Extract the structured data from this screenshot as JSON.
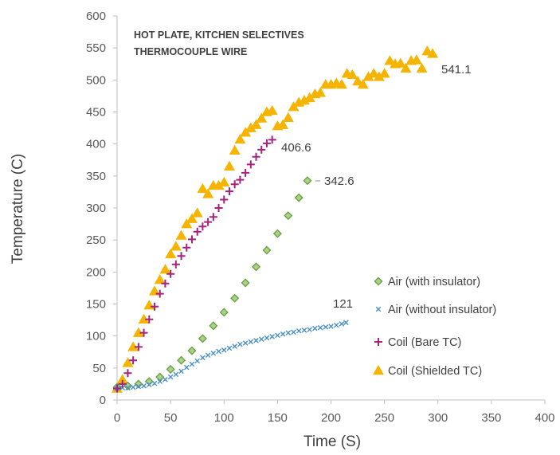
{
  "chart_data": {
    "type": "scatter",
    "title_lines": [
      "HOT PLATE, KITCHEN SELECTIVES",
      "THERMOCOUPLE WIRE"
    ],
    "xlabel": "Time (S)",
    "ylabel": "Temperature (C)",
    "xlim": [
      0,
      400
    ],
    "ylim": [
      0,
      600
    ],
    "x_ticks": [
      "0",
      "50",
      "100",
      "150",
      "200",
      "250",
      "300",
      "350",
      "400"
    ],
    "y_ticks": [
      "0",
      "50",
      "100",
      "150",
      "200",
      "250",
      "300",
      "350",
      "400",
      "450",
      "500",
      "550",
      "600"
    ],
    "grid": false,
    "legend_position": "bottom-right inside plot",
    "annotations": [
      "541.1",
      "406.6",
      "342.6",
      "121"
    ],
    "series": [
      {
        "name": "Air (with insulator)",
        "marker": "diamond",
        "color": "#6a9e3a",
        "fill": "#a9d18e",
        "points": [
          [
            0,
            20
          ],
          [
            10,
            22
          ],
          [
            20,
            25
          ],
          [
            30,
            29
          ],
          [
            40,
            36
          ],
          [
            50,
            48
          ],
          [
            60,
            62
          ],
          [
            70,
            77
          ],
          [
            80,
            96
          ],
          [
            90,
            116
          ],
          [
            100,
            137
          ],
          [
            110,
            159
          ],
          [
            120,
            183
          ],
          [
            130,
            208
          ],
          [
            140,
            234
          ],
          [
            150,
            260
          ],
          [
            160,
            288
          ],
          [
            170,
            316
          ],
          [
            178,
            342.6
          ]
        ]
      },
      {
        "name": "Air (without insulator)",
        "marker": "x",
        "color": "#4a90c8",
        "points": [
          [
            0,
            18
          ],
          [
            5,
            19
          ],
          [
            10,
            19
          ],
          [
            15,
            20
          ],
          [
            20,
            21
          ],
          [
            25,
            22
          ],
          [
            30,
            24
          ],
          [
            35,
            26
          ],
          [
            40,
            29
          ],
          [
            45,
            32
          ],
          [
            50,
            36
          ],
          [
            55,
            40
          ],
          [
            60,
            45
          ],
          [
            65,
            51
          ],
          [
            70,
            56
          ],
          [
            75,
            61
          ],
          [
            80,
            66
          ],
          [
            85,
            70
          ],
          [
            90,
            73
          ],
          [
            95,
            76
          ],
          [
            100,
            78
          ],
          [
            105,
            81
          ],
          [
            110,
            84
          ],
          [
            115,
            87
          ],
          [
            120,
            89
          ],
          [
            125,
            91
          ],
          [
            130,
            93
          ],
          [
            135,
            95
          ],
          [
            140,
            97
          ],
          [
            145,
            99
          ],
          [
            150,
            101
          ],
          [
            155,
            103
          ],
          [
            160,
            105
          ],
          [
            165,
            106
          ],
          [
            170,
            108
          ],
          [
            175,
            109
          ],
          [
            180,
            110
          ],
          [
            185,
            112
          ],
          [
            190,
            113
          ],
          [
            195,
            114
          ],
          [
            200,
            115
          ],
          [
            205,
            117
          ],
          [
            210,
            119
          ],
          [
            214,
            121
          ]
        ]
      },
      {
        "name": "Coil (Bare TC)",
        "marker": "plus",
        "color": "#a5227e",
        "points": [
          [
            0,
            18
          ],
          [
            5,
            25
          ],
          [
            10,
            42
          ],
          [
            15,
            62
          ],
          [
            20,
            83
          ],
          [
            25,
            105
          ],
          [
            30,
            126
          ],
          [
            35,
            146
          ],
          [
            40,
            166
          ],
          [
            45,
            182
          ],
          [
            50,
            197
          ],
          [
            55,
            212
          ],
          [
            60,
            225
          ],
          [
            65,
            238
          ],
          [
            70,
            251
          ],
          [
            75,
            263
          ],
          [
            80,
            271
          ],
          [
            85,
            278
          ],
          [
            90,
            286
          ],
          [
            95,
            300
          ],
          [
            100,
            313
          ],
          [
            105,
            326
          ],
          [
            110,
            337
          ],
          [
            115,
            344
          ],
          [
            120,
            355
          ],
          [
            125,
            368
          ],
          [
            130,
            380
          ],
          [
            135,
            391
          ],
          [
            140,
            401
          ],
          [
            145,
            406.6
          ]
        ]
      },
      {
        "name": "Coil (Shielded TC)",
        "marker": "triangle",
        "color": "#f5b400",
        "points": [
          [
            0,
            18
          ],
          [
            5,
            32
          ],
          [
            10,
            58
          ],
          [
            15,
            83
          ],
          [
            20,
            105
          ],
          [
            25,
            126
          ],
          [
            30,
            148
          ],
          [
            35,
            170
          ],
          [
            40,
            188
          ],
          [
            45,
            204
          ],
          [
            50,
            228
          ],
          [
            55,
            240
          ],
          [
            60,
            257
          ],
          [
            65,
            275
          ],
          [
            70,
            283
          ],
          [
            75,
            292
          ],
          [
            80,
            330
          ],
          [
            85,
            322
          ],
          [
            90,
            335
          ],
          [
            95,
            335
          ],
          [
            100,
            340
          ],
          [
            105,
            365
          ],
          [
            110,
            390
          ],
          [
            115,
            407
          ],
          [
            120,
            418
          ],
          [
            125,
            425
          ],
          [
            130,
            430
          ],
          [
            135,
            440
          ],
          [
            140,
            450
          ],
          [
            145,
            452
          ],
          [
            150,
            428
          ],
          [
            155,
            430
          ],
          [
            160,
            441
          ],
          [
            165,
            458
          ],
          [
            170,
            465
          ],
          [
            175,
            468
          ],
          [
            180,
            472
          ],
          [
            185,
            478
          ],
          [
            190,
            480
          ],
          [
            195,
            493
          ],
          [
            200,
            493
          ],
          [
            205,
            495
          ],
          [
            210,
            493
          ],
          [
            215,
            510
          ],
          [
            220,
            508
          ],
          [
            225,
            498
          ],
          [
            230,
            493
          ],
          [
            235,
            505
          ],
          [
            240,
            510
          ],
          [
            245,
            505
          ],
          [
            250,
            510
          ],
          [
            255,
            530
          ],
          [
            260,
            525
          ],
          [
            265,
            526
          ],
          [
            270,
            518
          ],
          [
            275,
            530
          ],
          [
            280,
            531
          ],
          [
            285,
            518
          ],
          [
            290,
            545
          ],
          [
            295,
            541.1
          ]
        ]
      }
    ]
  }
}
